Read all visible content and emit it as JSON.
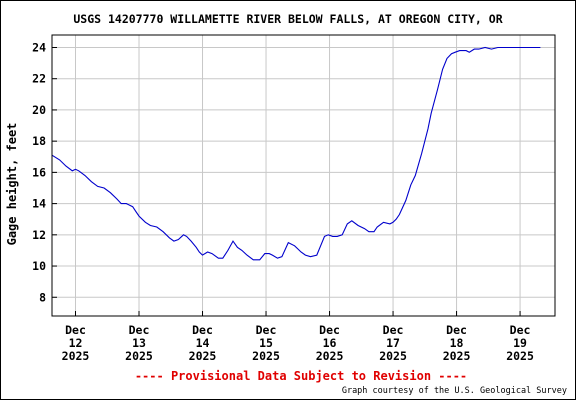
{
  "chart_data": {
    "type": "line",
    "title": "USGS 14207770 WILLAMETTE RIVER BELOW FALLS, AT OREGON CITY, OR",
    "ylabel": "Gage height, feet",
    "xlabel": "",
    "ylim": [
      6.8,
      24.8
    ],
    "yticks": [
      8,
      10,
      12,
      14,
      16,
      18,
      20,
      22,
      24
    ],
    "xlim": [
      11.63,
      19.55
    ],
    "xticks": [
      {
        "month": "Dec",
        "day": "12",
        "year": "2025",
        "value": 12
      },
      {
        "month": "Dec",
        "day": "13",
        "year": "2025",
        "value": 13
      },
      {
        "month": "Dec",
        "day": "14",
        "year": "2025",
        "value": 14
      },
      {
        "month": "Dec",
        "day": "15",
        "year": "2025",
        "value": 15
      },
      {
        "month": "Dec",
        "day": "16",
        "year": "2025",
        "value": 16
      },
      {
        "month": "Dec",
        "day": "17",
        "year": "2025",
        "value": 17
      },
      {
        "month": "Dec",
        "day": "18",
        "year": "2025",
        "value": 18
      },
      {
        "month": "Dec",
        "day": "19",
        "year": "2025",
        "value": 19
      }
    ],
    "grid": true,
    "line_color": "#0000cc",
    "series": [
      {
        "x": [
          11.63,
          11.75,
          11.85,
          11.95,
          12.0,
          12.05,
          12.15,
          12.25,
          12.35,
          12.45,
          12.55,
          12.65,
          12.72,
          12.8,
          12.9,
          12.95,
          13.0,
          13.1,
          13.18,
          13.28,
          13.38,
          13.48,
          13.55,
          13.62,
          13.7,
          13.75,
          13.82,
          13.9,
          13.95,
          14.0,
          14.08,
          14.15,
          14.25,
          14.32,
          14.4,
          14.48,
          14.55,
          14.62,
          14.7,
          14.8,
          14.9,
          14.98,
          15.05,
          15.1,
          15.18,
          15.25,
          15.35,
          15.45,
          15.5,
          15.55,
          15.62,
          15.7,
          15.8,
          15.92,
          15.98,
          16.05,
          16.12,
          16.2,
          16.28,
          16.35,
          16.45,
          16.55,
          16.62,
          16.7,
          16.75,
          16.85,
          16.95,
          17.0,
          17.05,
          17.1,
          17.2,
          17.28,
          17.35,
          17.45,
          17.55,
          17.6,
          17.7,
          17.78,
          17.85,
          17.92,
          17.98,
          18.05,
          18.1,
          18.15,
          18.2,
          18.28,
          18.35,
          18.45,
          18.55,
          18.65,
          18.72,
          18.8,
          18.88,
          18.93,
          18.98,
          19.03,
          19.08,
          19.15,
          19.22,
          19.28,
          19.32
        ],
        "y": [
          17.1,
          16.8,
          16.4,
          16.1,
          16.2,
          16.1,
          15.8,
          15.4,
          15.1,
          15.0,
          14.7,
          14.3,
          14.0,
          14.0,
          13.8,
          13.5,
          13.2,
          12.8,
          12.6,
          12.5,
          12.2,
          11.8,
          11.6,
          11.7,
          12.0,
          11.9,
          11.6,
          11.2,
          10.9,
          10.7,
          10.9,
          10.8,
          10.5,
          10.5,
          11.0,
          11.6,
          11.2,
          11.0,
          10.7,
          10.4,
          10.4,
          10.8,
          10.8,
          10.7,
          10.5,
          10.6,
          11.5,
          11.3,
          11.1,
          10.9,
          10.7,
          10.6,
          10.7,
          11.9,
          12.0,
          11.9,
          11.9,
          12.0,
          12.7,
          12.9,
          12.6,
          12.4,
          12.2,
          12.2,
          12.5,
          12.8,
          12.7,
          12.8,
          13.0,
          13.3,
          14.2,
          15.2,
          15.8,
          17.2,
          18.8,
          19.8,
          21.3,
          22.6,
          23.3,
          23.6,
          23.7,
          23.8,
          23.8,
          23.8,
          23.7,
          23.9,
          23.9,
          24.0,
          23.9,
          24.0,
          24.0,
          24.0,
          24.0,
          24.0,
          24.0,
          24.0,
          24.0,
          24.0,
          24.0,
          24.0,
          24.0
        ]
      }
    ]
  },
  "footer": {
    "provisional": "---- Provisional Data Subject to Revision ----",
    "credit": "Graph courtesy of the U.S. Geological Survey"
  }
}
